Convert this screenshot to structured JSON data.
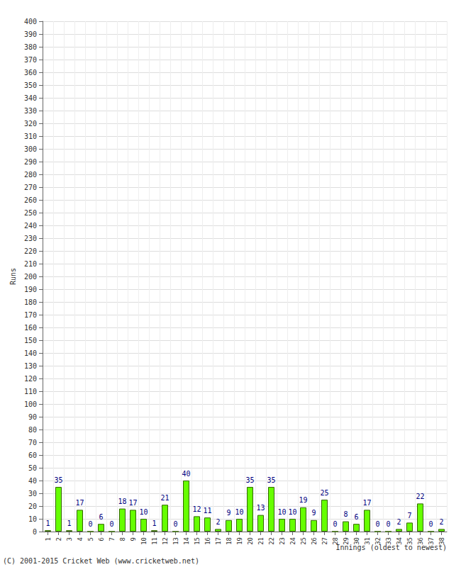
{
  "chart_data": {
    "type": "bar",
    "x_label": "Innings (oldest to newest)",
    "y_label": "Runs",
    "footer": "(C) 2001-2015 Cricket Web (www.cricketweb.net)",
    "categories": [
      "1",
      "2",
      "3",
      "4",
      "5",
      "6",
      "7",
      "8",
      "9",
      "10",
      "11",
      "12",
      "13",
      "14",
      "15",
      "16",
      "17",
      "18",
      "19",
      "20",
      "21",
      "22",
      "23",
      "24",
      "25",
      "26",
      "27",
      "28",
      "29",
      "30",
      "31",
      "32",
      "33",
      "34",
      "35",
      "36",
      "37",
      "38"
    ],
    "values": [
      1,
      35,
      1,
      17,
      0,
      6,
      0,
      18,
      17,
      10,
      1,
      21,
      0,
      40,
      12,
      11,
      2,
      9,
      10,
      35,
      13,
      35,
      10,
      10,
      19,
      9,
      25,
      0,
      8,
      6,
      17,
      0,
      0,
      2,
      7,
      22,
      0,
      2
    ],
    "color": "#66ff00",
    "ylim": [
      0,
      400
    ],
    "yticks": [
      0,
      10,
      20,
      30,
      40,
      50,
      60,
      70,
      80,
      90,
      100,
      110,
      120,
      130,
      140,
      150,
      160,
      170,
      180,
      190,
      200,
      210,
      220,
      230,
      240,
      250,
      260,
      270,
      280,
      290,
      300,
      310,
      320,
      330,
      340,
      350,
      360,
      370,
      380,
      390,
      400
    ],
    "grid": true,
    "data_labels": true
  }
}
